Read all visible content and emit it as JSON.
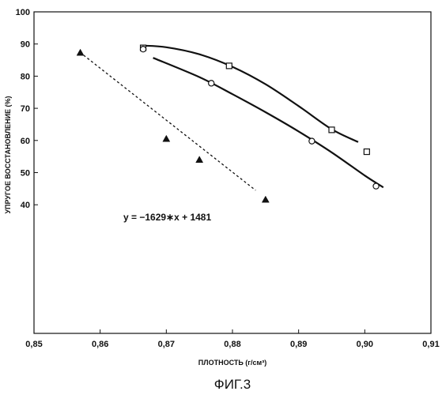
{
  "chart_data": {
    "type": "scatter",
    "title": "",
    "xlabel": "ПЛОТНОСТЬ (г/см³)",
    "ylabel": "УПРУГОЕ ВОССТАНОВЛЕНИЕ (%)",
    "xlim": [
      0.85,
      0.91
    ],
    "ylim": [
      0,
      100
    ],
    "xticks": [
      "0,85",
      "0,86",
      "0,87",
      "0,88",
      "0,89",
      "0,90",
      "0,91"
    ],
    "yticks": [
      "40",
      "50",
      "60",
      "70",
      "80",
      "90",
      "100"
    ],
    "grid": false,
    "series": [
      {
        "marker": "square",
        "x": [
          0.8665,
          0.8795,
          0.895,
          0.9003
        ],
        "y": [
          88.8,
          83.2,
          63.3,
          56.5
        ],
        "curve": {
          "x": [
            0.8663,
            0.87,
            0.875,
            0.88,
            0.885,
            0.89,
            0.895,
            0.899
          ],
          "y": [
            89.5,
            89.0,
            86.8,
            82.9,
            77.5,
            70.7,
            63.5,
            59.5
          ],
          "style": "solid"
        }
      },
      {
        "marker": "circle",
        "x": [
          0.8665,
          0.8768,
          0.892,
          0.9017
        ],
        "y": [
          88.4,
          77.8,
          59.8,
          45.8
        ],
        "curve": {
          "x": [
            0.868,
            0.875,
            0.88,
            0.885,
            0.89,
            0.895,
            0.9,
            0.9028
          ],
          "y": [
            85.7,
            79.7,
            74.4,
            68.8,
            62.8,
            56.3,
            49.1,
            45.4
          ],
          "style": "solid"
        }
      },
      {
        "marker": "triangle",
        "x": [
          0.857,
          0.87,
          0.875,
          0.885
        ],
        "y": [
          87.3,
          60.5,
          54.0,
          41.6
        ],
        "curve": {
          "x": [
            0.8575,
            0.8835
          ],
          "y": [
            86.5,
            44.5
          ],
          "style": "dashed"
        }
      }
    ],
    "annotations": [
      {
        "text": "y = −1629∗x + 1481"
      }
    ]
  },
  "caption": "ФИГ.3"
}
